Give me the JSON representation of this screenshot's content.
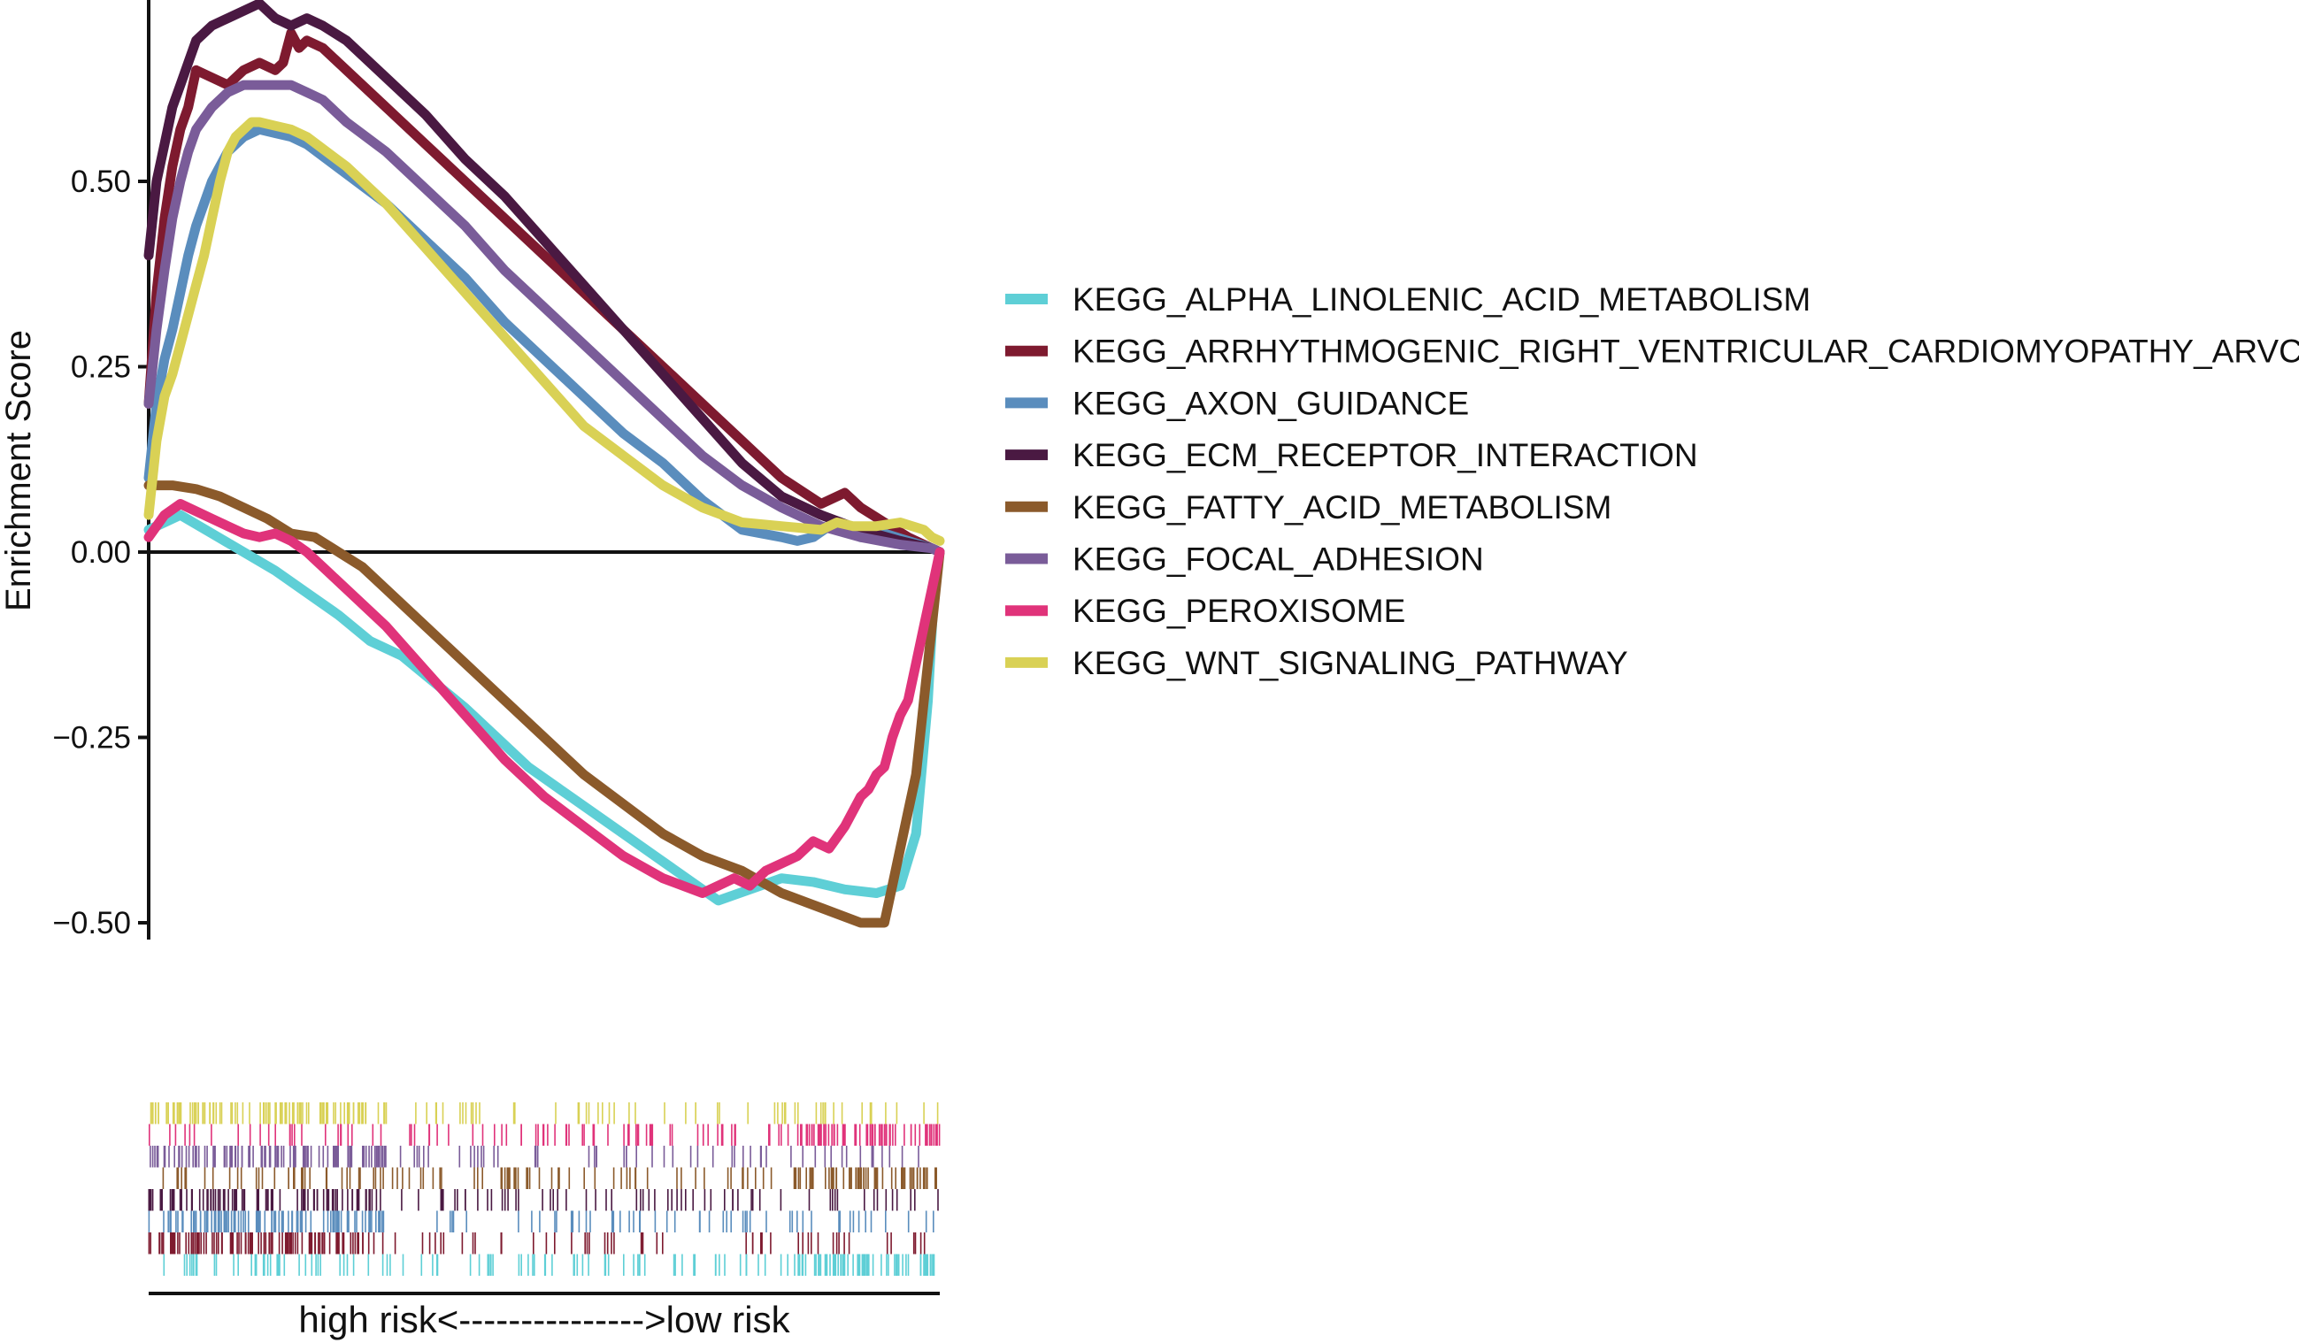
{
  "chart_data": {
    "type": "line",
    "title": "",
    "xlabel": "high risk<--------------->low risk",
    "ylabel": "Enrichment Score",
    "xlim": [
      0,
      100
    ],
    "ylim": [
      -0.52,
      0.75
    ],
    "yticks": [
      0.5,
      0.25,
      0.0,
      -0.25,
      -0.5
    ],
    "ytick_labels": [
      "0.50",
      "0.25",
      "0.00",
      "−0.25",
      "−0.50"
    ],
    "grid": false,
    "legend_position": "right",
    "series": [
      {
        "name": "KEGG_ALPHA_LINOLENIC_ACID_METABOLISM",
        "color": "#5ECFD6",
        "x": [
          0,
          4,
          8,
          12,
          16,
          20,
          24,
          28,
          32,
          36,
          40,
          44,
          48,
          52,
          56,
          60,
          64,
          68,
          72,
          76,
          80,
          84,
          88,
          92,
          95,
          97,
          98.5,
          99.3,
          100
        ],
        "y": [
          0.03,
          0.05,
          0.025,
          0.0,
          -0.025,
          -0.055,
          -0.085,
          -0.12,
          -0.14,
          -0.175,
          -0.21,
          -0.25,
          -0.29,
          -0.32,
          -0.35,
          -0.38,
          -0.41,
          -0.44,
          -0.47,
          -0.455,
          -0.44,
          -0.445,
          -0.455,
          -0.46,
          -0.45,
          -0.38,
          -0.2,
          -0.05,
          0.0
        ]
      },
      {
        "name": "KEGG_ARRHYTHMOGENIC_RIGHT_VENTRICULAR_CARDIOMYOPATHY_ARVC",
        "color": "#7E1A2F",
        "x": [
          0,
          1,
          2,
          3,
          4,
          5,
          6,
          8,
          10,
          12,
          14,
          16,
          17,
          18,
          19,
          20,
          22,
          25,
          30,
          35,
          40,
          45,
          50,
          55,
          60,
          65,
          70,
          75,
          80,
          85,
          88,
          90,
          93,
          96,
          99,
          100
        ],
        "y": [
          0.2,
          0.35,
          0.45,
          0.52,
          0.57,
          0.6,
          0.65,
          0.64,
          0.63,
          0.65,
          0.66,
          0.65,
          0.66,
          0.7,
          0.68,
          0.69,
          0.68,
          0.65,
          0.6,
          0.55,
          0.5,
          0.45,
          0.4,
          0.35,
          0.3,
          0.25,
          0.2,
          0.15,
          0.1,
          0.065,
          0.08,
          0.06,
          0.04,
          0.02,
          0.005,
          0.0
        ]
      },
      {
        "name": "KEGG_AXON_GUIDANCE",
        "color": "#5A8DBD",
        "x": [
          0,
          1,
          2,
          3,
          4,
          5,
          6,
          8,
          10,
          12,
          14,
          16,
          18,
          20,
          25,
          30,
          35,
          40,
          45,
          50,
          55,
          60,
          65,
          70,
          75,
          80,
          82,
          84,
          86,
          88,
          90,
          93,
          96,
          99,
          100
        ],
        "y": [
          0.1,
          0.2,
          0.26,
          0.3,
          0.35,
          0.4,
          0.44,
          0.5,
          0.54,
          0.56,
          0.57,
          0.565,
          0.56,
          0.55,
          0.51,
          0.47,
          0.42,
          0.37,
          0.31,
          0.26,
          0.21,
          0.16,
          0.12,
          0.07,
          0.03,
          0.02,
          0.015,
          0.02,
          0.035,
          0.03,
          0.02,
          0.025,
          0.015,
          0.005,
          0.0
        ]
      },
      {
        "name": "KEGG_ECM_RECEPTOR_INTERACTION",
        "color": "#4A1942",
        "x": [
          0,
          1,
          2,
          3,
          4,
          5,
          6,
          8,
          10,
          12,
          14,
          15,
          16,
          18,
          20,
          22,
          25,
          30,
          35,
          40,
          45,
          50,
          55,
          60,
          65,
          70,
          75,
          80,
          85,
          90,
          95,
          99,
          100
        ],
        "y": [
          0.4,
          0.5,
          0.55,
          0.6,
          0.63,
          0.66,
          0.69,
          0.71,
          0.72,
          0.73,
          0.74,
          0.73,
          0.72,
          0.71,
          0.72,
          0.71,
          0.69,
          0.64,
          0.59,
          0.53,
          0.48,
          0.42,
          0.36,
          0.3,
          0.24,
          0.18,
          0.12,
          0.075,
          0.05,
          0.03,
          0.015,
          0.005,
          0.0
        ]
      },
      {
        "name": "KEGG_FATTY_ACID_METABOLISM",
        "color": "#8B5A2B",
        "x": [
          0,
          3,
          6,
          9,
          12,
          15,
          18,
          21,
          24,
          27,
          30,
          35,
          40,
          45,
          50,
          55,
          60,
          65,
          70,
          75,
          80,
          85,
          90,
          93,
          94,
          95,
          96,
          97,
          98,
          99,
          100
        ],
        "y": [
          0.09,
          0.09,
          0.085,
          0.075,
          0.06,
          0.045,
          0.025,
          0.02,
          0.0,
          -0.02,
          -0.05,
          -0.1,
          -0.15,
          -0.2,
          -0.25,
          -0.3,
          -0.34,
          -0.38,
          -0.41,
          -0.43,
          -0.46,
          -0.48,
          -0.5,
          -0.5,
          -0.45,
          -0.4,
          -0.35,
          -0.3,
          -0.2,
          -0.1,
          0.0
        ]
      },
      {
        "name": "KEGG_FOCAL_ADHESION",
        "color": "#7A5C99",
        "x": [
          0,
          1,
          2,
          3,
          4,
          5,
          6,
          8,
          10,
          12,
          14,
          16,
          18,
          20,
          22,
          25,
          30,
          35,
          40,
          45,
          50,
          55,
          60,
          65,
          70,
          75,
          80,
          85,
          90,
          95,
          99,
          100
        ],
        "y": [
          0.2,
          0.3,
          0.38,
          0.45,
          0.5,
          0.54,
          0.57,
          0.6,
          0.62,
          0.63,
          0.63,
          0.63,
          0.63,
          0.62,
          0.61,
          0.58,
          0.54,
          0.49,
          0.44,
          0.38,
          0.33,
          0.28,
          0.23,
          0.18,
          0.13,
          0.09,
          0.06,
          0.035,
          0.02,
          0.01,
          0.005,
          0.0
        ]
      },
      {
        "name": "KEGG_PEROXISOME",
        "color": "#E0337A",
        "x": [
          0,
          2,
          4,
          6,
          8,
          10,
          12,
          14,
          16,
          18,
          20,
          22,
          25,
          30,
          35,
          40,
          45,
          50,
          55,
          60,
          65,
          70,
          72,
          74,
          76,
          78,
          80,
          82,
          84,
          86,
          88,
          90,
          91,
          92,
          93,
          94,
          95,
          96,
          97,
          98,
          99,
          100
        ],
        "y": [
          0.02,
          0.05,
          0.065,
          0.055,
          0.045,
          0.035,
          0.025,
          0.02,
          0.025,
          0.015,
          0.0,
          -0.02,
          -0.05,
          -0.1,
          -0.16,
          -0.22,
          -0.28,
          -0.33,
          -0.37,
          -0.41,
          -0.44,
          -0.46,
          -0.45,
          -0.44,
          -0.45,
          -0.43,
          -0.42,
          -0.41,
          -0.39,
          -0.4,
          -0.37,
          -0.33,
          -0.32,
          -0.3,
          -0.29,
          -0.25,
          -0.22,
          -0.2,
          -0.15,
          -0.1,
          -0.05,
          0.0
        ]
      },
      {
        "name": "KEGG_WNT_SIGNALING_PATHWAY",
        "color": "#D9D155",
        "x": [
          0,
          1,
          2,
          3,
          4,
          5,
          6,
          7,
          8,
          9,
          10,
          11,
          12,
          13,
          14,
          16,
          18,
          20,
          25,
          30,
          35,
          40,
          45,
          50,
          55,
          60,
          65,
          70,
          75,
          80,
          85,
          87,
          89,
          92,
          95,
          98,
          99,
          100
        ],
        "y": [
          0.05,
          0.15,
          0.21,
          0.24,
          0.28,
          0.32,
          0.36,
          0.4,
          0.45,
          0.5,
          0.54,
          0.56,
          0.57,
          0.58,
          0.58,
          0.575,
          0.57,
          0.56,
          0.52,
          0.47,
          0.41,
          0.35,
          0.29,
          0.23,
          0.17,
          0.13,
          0.09,
          0.06,
          0.04,
          0.035,
          0.03,
          0.04,
          0.035,
          0.035,
          0.04,
          0.03,
          0.02,
          0.015
        ]
      }
    ],
    "rug_order_top_to_bottom": [
      "KEGG_WNT_SIGNALING_PATHWAY",
      "KEGG_PEROXISOME",
      "KEGG_FOCAL_ADHESION",
      "KEGG_FATTY_ACID_METABOLISM",
      "KEGG_ECM_RECEPTOR_INTERACTION",
      "KEGG_AXON_GUIDANCE",
      "KEGG_ARRHYTHMOGENIC_RIGHT_VENTRICULAR_CARDIOMYOPATHY_ARVC",
      "KEGG_ALPHA_LINOLENIC_ACID_METABOLISM"
    ]
  }
}
